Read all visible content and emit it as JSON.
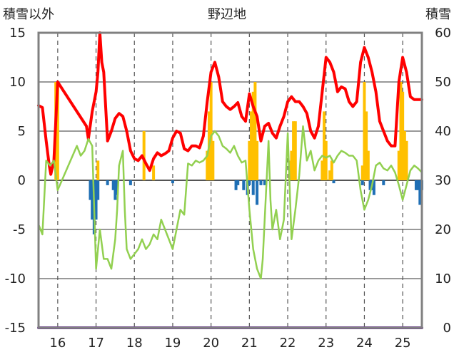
{
  "chart_data": {
    "type": "line",
    "title": "野辺地",
    "y_left_label": "積雪以外",
    "y_right_label": "積雪",
    "y_left_ticks": [
      "15",
      "10",
      "5",
      "0",
      "-5",
      "-10",
      "-15"
    ],
    "y_right_ticks": [
      "60",
      "50",
      "40",
      "30",
      "20",
      "10",
      "0"
    ],
    "x_ticks": [
      "16",
      "17",
      "18",
      "19",
      "20",
      "21",
      "22",
      "23",
      "24",
      "25"
    ],
    "ylim_left": [
      -15,
      15
    ],
    "ylim_right": [
      0,
      60
    ],
    "xlim": [
      15.5,
      25.5
    ],
    "grid": "dashed vertical",
    "colors": {
      "red_line": "#ff0000",
      "green_line": "#92d050",
      "orange_bars": "#ffc000",
      "blue_bars": "#1f6fb5",
      "baseline": "#7030a0",
      "frame": "#808080"
    },
    "series": [
      {
        "style": "red line",
        "axis": "left",
        "points": [
          [
            15.5,
            7.6
          ],
          [
            15.6,
            7.4
          ],
          [
            15.7,
            4
          ],
          [
            15.78,
            1.5
          ],
          [
            15.82,
            0.6
          ],
          [
            15.9,
            2
          ],
          [
            16.0,
            10
          ],
          [
            16.75,
            5.5
          ],
          [
            16.8,
            4.2
          ],
          [
            16.9,
            7
          ],
          [
            17.0,
            9
          ],
          [
            17.05,
            11
          ],
          [
            17.1,
            15
          ],
          [
            17.15,
            12
          ],
          [
            17.2,
            11
          ],
          [
            17.3,
            4
          ],
          [
            17.4,
            5
          ],
          [
            17.5,
            6.3
          ],
          [
            17.6,
            6.8
          ],
          [
            17.7,
            6.5
          ],
          [
            17.8,
            5
          ],
          [
            17.9,
            3
          ],
          [
            18.0,
            2.2
          ],
          [
            18.1,
            2
          ],
          [
            18.2,
            2.5
          ],
          [
            18.3,
            1.7
          ],
          [
            18.4,
            1
          ],
          [
            18.5,
            2.2
          ],
          [
            18.6,
            2.8
          ],
          [
            18.7,
            2.5
          ],
          [
            18.8,
            2.7
          ],
          [
            18.9,
            3
          ],
          [
            19.0,
            4.3
          ],
          [
            19.1,
            5
          ],
          [
            19.2,
            4.8
          ],
          [
            19.3,
            3.2
          ],
          [
            19.4,
            3
          ],
          [
            19.5,
            3.5
          ],
          [
            19.6,
            3.5
          ],
          [
            19.7,
            3.3
          ],
          [
            19.8,
            4.5
          ],
          [
            19.9,
            8
          ],
          [
            20.0,
            11
          ],
          [
            20.1,
            12
          ],
          [
            20.2,
            10.5
          ],
          [
            20.3,
            8
          ],
          [
            20.4,
            7.5
          ],
          [
            20.5,
            7.2
          ],
          [
            20.6,
            7.5
          ],
          [
            20.7,
            7.9
          ],
          [
            20.8,
            6.5
          ],
          [
            20.9,
            6
          ],
          [
            21.0,
            8.8
          ],
          [
            21.1,
            7.5
          ],
          [
            21.2,
            6.5
          ],
          [
            21.3,
            4
          ],
          [
            21.4,
            5.5
          ],
          [
            21.5,
            5.8
          ],
          [
            21.6,
            4.8
          ],
          [
            21.7,
            4.3
          ],
          [
            21.8,
            5.5
          ],
          [
            21.9,
            6.5
          ],
          [
            22.0,
            8
          ],
          [
            22.1,
            8.5
          ],
          [
            22.2,
            8
          ],
          [
            22.3,
            8
          ],
          [
            22.4,
            7.5
          ],
          [
            22.5,
            6.8
          ],
          [
            22.6,
            5
          ],
          [
            22.7,
            4.3
          ],
          [
            22.8,
            5.5
          ],
          [
            22.9,
            9
          ],
          [
            23.0,
            12.5
          ],
          [
            23.1,
            12
          ],
          [
            23.2,
            11
          ],
          [
            23.3,
            9
          ],
          [
            23.4,
            9.5
          ],
          [
            23.5,
            9.3
          ],
          [
            23.6,
            8
          ],
          [
            23.7,
            7.5
          ],
          [
            23.8,
            8
          ],
          [
            23.9,
            12
          ],
          [
            24.0,
            13.5
          ],
          [
            24.1,
            12.5
          ],
          [
            24.2,
            11
          ],
          [
            24.3,
            9
          ],
          [
            24.4,
            6
          ],
          [
            24.5,
            5
          ],
          [
            24.6,
            4
          ],
          [
            24.7,
            3.5
          ],
          [
            24.8,
            3.5
          ],
          [
            24.9,
            10
          ],
          [
            25.0,
            12.5
          ],
          [
            25.1,
            11
          ],
          [
            25.2,
            8.5
          ],
          [
            25.3,
            8.2
          ],
          [
            25.4,
            8.2
          ],
          [
            25.5,
            8.2
          ]
        ]
      },
      {
        "style": "green line",
        "axis": "left",
        "points": [
          [
            15.5,
            -4.5
          ],
          [
            15.6,
            -5.5
          ],
          [
            15.7,
            2
          ],
          [
            15.8,
            1.5
          ],
          [
            15.9,
            2
          ],
          [
            16.0,
            -1
          ],
          [
            16.5,
            3.5
          ],
          [
            16.6,
            2.5
          ],
          [
            16.7,
            3
          ],
          [
            16.8,
            4.2
          ],
          [
            16.9,
            3.5
          ],
          [
            17.0,
            -9
          ],
          [
            17.1,
            -5
          ],
          [
            17.2,
            -8
          ],
          [
            17.3,
            -8
          ],
          [
            17.4,
            -9
          ],
          [
            17.5,
            -6
          ],
          [
            17.55,
            -3
          ],
          [
            17.6,
            1.5
          ],
          [
            17.7,
            3
          ],
          [
            17.75,
            -3
          ],
          [
            17.8,
            -7
          ],
          [
            17.9,
            -8
          ],
          [
            18.0,
            -7.5
          ],
          [
            18.1,
            -7
          ],
          [
            18.2,
            -6
          ],
          [
            18.3,
            -7
          ],
          [
            18.4,
            -6.5
          ],
          [
            18.5,
            -5.5
          ],
          [
            18.6,
            -6
          ],
          [
            18.7,
            -4
          ],
          [
            18.8,
            -5
          ],
          [
            18.9,
            -6
          ],
          [
            19.0,
            -7
          ],
          [
            19.1,
            -5
          ],
          [
            19.2,
            -3
          ],
          [
            19.3,
            -3.5
          ],
          [
            19.4,
            1.7
          ],
          [
            19.5,
            1.5
          ],
          [
            19.6,
            2
          ],
          [
            19.7,
            1.8
          ],
          [
            19.8,
            2
          ],
          [
            19.9,
            2.5
          ],
          [
            20.0,
            4.5
          ],
          [
            20.1,
            5
          ],
          [
            20.2,
            4.5
          ],
          [
            20.3,
            3.5
          ],
          [
            20.4,
            3.2
          ],
          [
            20.5,
            2.8
          ],
          [
            20.6,
            3.5
          ],
          [
            20.7,
            2.5
          ],
          [
            20.8,
            1.8
          ],
          [
            20.9,
            2
          ],
          [
            21.0,
            -3
          ],
          [
            21.1,
            -7
          ],
          [
            21.2,
            -9
          ],
          [
            21.3,
            -10
          ],
          [
            21.35,
            -8
          ],
          [
            21.4,
            -4
          ],
          [
            21.5,
            4
          ],
          [
            21.55,
            -2
          ],
          [
            21.6,
            -5
          ],
          [
            21.7,
            -3
          ],
          [
            21.8,
            -6
          ],
          [
            21.9,
            -4
          ],
          [
            22.0,
            4.8
          ],
          [
            22.1,
            -6
          ],
          [
            22.2,
            -3
          ],
          [
            22.3,
            0.5
          ],
          [
            22.4,
            5.5
          ],
          [
            22.5,
            2
          ],
          [
            22.6,
            3
          ],
          [
            22.7,
            1
          ],
          [
            22.8,
            2
          ],
          [
            22.9,
            2.5
          ],
          [
            23.0,
            2.3
          ],
          [
            23.1,
            2.5
          ],
          [
            23.2,
            1.8
          ],
          [
            23.3,
            2.5
          ],
          [
            23.4,
            3
          ],
          [
            23.5,
            2.8
          ],
          [
            23.6,
            2.5
          ],
          [
            23.7,
            2.5
          ],
          [
            23.8,
            2
          ],
          [
            23.9,
            -1
          ],
          [
            24.0,
            -3
          ],
          [
            24.1,
            -2
          ],
          [
            24.2,
            -0.5
          ],
          [
            24.3,
            1.5
          ],
          [
            24.4,
            1.8
          ],
          [
            24.5,
            1.2
          ],
          [
            24.6,
            1
          ],
          [
            24.7,
            1.5
          ],
          [
            24.8,
            0.8
          ],
          [
            24.9,
            -0.5
          ],
          [
            25.0,
            -2
          ],
          [
            25.1,
            -0.5
          ],
          [
            25.2,
            1
          ],
          [
            25.3,
            1.5
          ],
          [
            25.4,
            1.2
          ],
          [
            25.5,
            0.8
          ]
        ]
      },
      {
        "style": "orange bars",
        "axis": "left",
        "bars": [
          [
            15.95,
            10
          ],
          [
            16.0,
            9.5
          ],
          [
            17.05,
            2
          ],
          [
            18.25,
            5
          ],
          [
            18.5,
            1.5
          ],
          [
            19.9,
            3
          ],
          [
            19.95,
            7
          ],
          [
            20.0,
            10
          ],
          [
            20.05,
            4
          ],
          [
            21.0,
            4
          ],
          [
            21.05,
            7
          ],
          [
            21.1,
            9
          ],
          [
            21.15,
            10
          ],
          [
            21.2,
            4
          ],
          [
            22.05,
            2
          ],
          [
            22.1,
            3
          ],
          [
            22.15,
            6
          ],
          [
            22.2,
            6
          ],
          [
            22.9,
            2
          ],
          [
            22.95,
            7
          ],
          [
            23.0,
            4
          ],
          [
            23.1,
            1
          ],
          [
            23.15,
            2
          ],
          [
            23.95,
            1.5
          ],
          [
            24.0,
            10
          ],
          [
            24.05,
            7
          ],
          [
            24.1,
            3
          ],
          [
            24.9,
            3
          ],
          [
            24.95,
            10
          ],
          [
            25.0,
            9
          ],
          [
            25.05,
            5
          ],
          [
            25.1,
            4
          ]
        ]
      },
      {
        "style": "blue bars",
        "axis": "left",
        "bars": [
          [
            16.85,
            -2
          ],
          [
            16.9,
            -4
          ],
          [
            16.95,
            -5.5
          ],
          [
            17.0,
            -4
          ],
          [
            17.05,
            -2
          ],
          [
            17.3,
            -0.5
          ],
          [
            17.45,
            -1
          ],
          [
            17.5,
            -2
          ],
          [
            17.55,
            -1.5
          ],
          [
            17.9,
            -0.5
          ],
          [
            19.0,
            -0.3
          ],
          [
            20.65,
            -1
          ],
          [
            20.7,
            -0.5
          ],
          [
            20.85,
            -1
          ],
          [
            20.95,
            -1.5
          ],
          [
            21.0,
            -0.5
          ],
          [
            21.1,
            -1.5
          ],
          [
            21.2,
            -2.5
          ],
          [
            21.3,
            -0.5
          ],
          [
            21.4,
            -0.5
          ],
          [
            23.2,
            -0.3
          ],
          [
            23.95,
            -0.5
          ],
          [
            24.15,
            -1
          ],
          [
            24.2,
            -1
          ],
          [
            24.25,
            -1.5
          ],
          [
            24.5,
            -0.5
          ],
          [
            25.35,
            -1
          ],
          [
            25.4,
            -1
          ],
          [
            25.45,
            -2.5
          ],
          [
            25.5,
            -1
          ]
        ]
      },
      {
        "style": "purple baseline",
        "axis": "right",
        "points": [
          [
            15.5,
            0
          ],
          [
            25.5,
            0
          ]
        ]
      }
    ]
  }
}
